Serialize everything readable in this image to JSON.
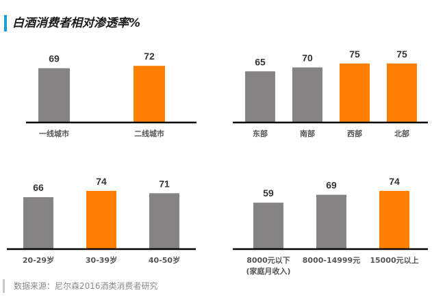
{
  "title": "白酒消费者相对渗透率%",
  "source": "数据来源：尼尔森2016酒类消费者研究",
  "colors": {
    "gray": "#858383",
    "orange": "#ff8000",
    "axis": "#000000",
    "accent": "#1a9fd6"
  },
  "chart_data": [
    {
      "type": "bar",
      "categories": [
        "一线城市",
        "二线城市"
      ],
      "values": [
        69,
        72
      ],
      "highlight": [
        false,
        true
      ]
    },
    {
      "type": "bar",
      "categories": [
        "东部",
        "南部",
        "西部",
        "北部"
      ],
      "values": [
        65,
        70,
        75,
        75
      ],
      "highlight": [
        false,
        false,
        true,
        true
      ]
    },
    {
      "type": "bar",
      "categories": [
        "20-29岁",
        "30-39岁",
        "40-50岁"
      ],
      "values": [
        66,
        74,
        71
      ],
      "highlight": [
        false,
        true,
        false
      ]
    },
    {
      "type": "bar",
      "categories": [
        [
          "8000元以下",
          "(家庭月收入)"
        ],
        "8000-14999元",
        "15000元以上"
      ],
      "values": [
        59,
        69,
        74
      ],
      "highlight": [
        false,
        false,
        true
      ]
    }
  ]
}
